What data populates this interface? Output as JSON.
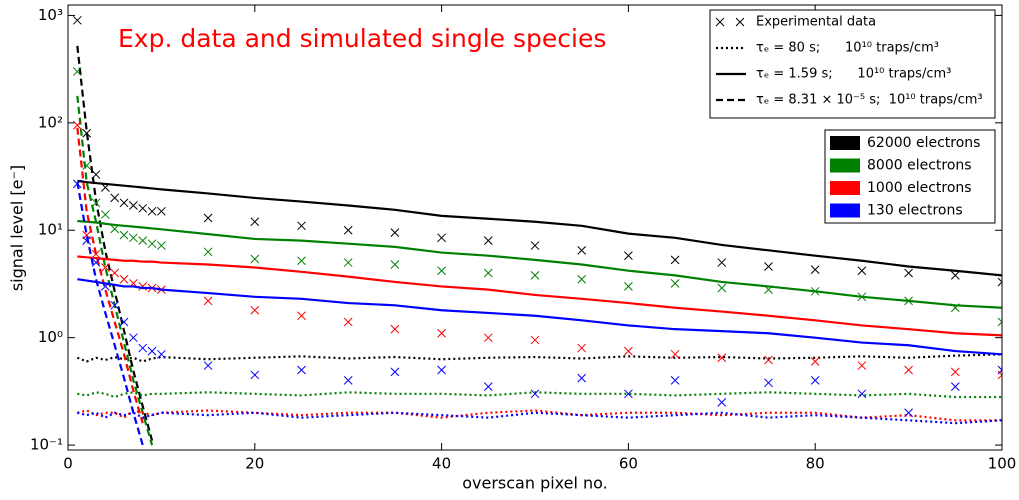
{
  "chart_data": {
    "type": "line",
    "title": "Exp. data and simulated single species",
    "xlabel": "overscan pixel no.",
    "ylabel": "signal level [e⁻]",
    "log_y": true,
    "xlim": [
      0,
      100
    ],
    "xticks": [
      0,
      20,
      40,
      60,
      80,
      100
    ],
    "ylim": [
      0.09,
      1250
    ],
    "yticks": [
      {
        "value": 0.1,
        "label": "10⁻¹"
      },
      {
        "value": 1,
        "label": "10⁰"
      },
      {
        "value": 10,
        "label": "10¹"
      },
      {
        "value": 100,
        "label": "10²"
      },
      {
        "value": 1000,
        "label": "10³"
      }
    ],
    "styles": [
      {
        "label": "Experimental data",
        "marker": "x"
      },
      {
        "label": "τₑ = 80 s;      10¹⁰ traps/cm³",
        "dash": "dotted"
      },
      {
        "label": "τₑ = 1.59 s;      10¹⁰ traps/cm³",
        "dash": "solid"
      },
      {
        "label": "τₑ = 8.31 × 10⁻⁵ s;  10¹⁰ traps/cm³",
        "dash": "dashed"
      }
    ],
    "x": [
      1,
      2,
      3,
      4,
      5,
      6,
      7,
      8,
      9,
      10,
      15,
      20,
      25,
      30,
      35,
      40,
      45,
      50,
      55,
      60,
      65,
      70,
      75,
      80,
      85,
      90,
      95,
      100
    ],
    "series": [
      {
        "name": "62000 electrons",
        "color": "#000000",
        "curves": [
          [
            900,
            80,
            33,
            25,
            20,
            18,
            17,
            16,
            15,
            15,
            13,
            12,
            11,
            10,
            9.5,
            8.5,
            8,
            7.2,
            6.5,
            5.8,
            5.3,
            5,
            4.6,
            4.3,
            4.2,
            4.0,
            3.8,
            3.3
          ],
          [
            0.65,
            0.6,
            0.65,
            0.62,
            0.66,
            0.63,
            0.65,
            0.6,
            0.64,
            0.66,
            0.63,
            0.65,
            0.67,
            0.64,
            0.66,
            0.63,
            0.65,
            0.66,
            0.64,
            0.67,
            0.65,
            0.66,
            0.64,
            0.65,
            0.67,
            0.65,
            0.68,
            0.7
          ],
          [
            28.8,
            28,
            27.5,
            27,
            26.5,
            26,
            25.5,
            25,
            24.5,
            24,
            22,
            20,
            18.5,
            17,
            15.5,
            13.6,
            12.8,
            12,
            11,
            9.3,
            8.5,
            7.3,
            6.5,
            5.8,
            5.2,
            4.6,
            4.2,
            3.8
          ],
          [
            520,
            84,
            18.8,
            6.4,
            2.7,
            1.16,
            0.49,
            0.23,
            0.11,
            null,
            null,
            null,
            null,
            null,
            null,
            null,
            null,
            null,
            null,
            null,
            null,
            null,
            null,
            null,
            null,
            null,
            null,
            null
          ]
        ]
      },
      {
        "name": "8000 electrons",
        "color": "#008000",
        "curves": [
          [
            300,
            40,
            18,
            14,
            10.3,
            9,
            8.5,
            8,
            7.5,
            7.2,
            6.3,
            5.4,
            5.2,
            5,
            4.8,
            4.2,
            4,
            3.8,
            3.5,
            3,
            3.2,
            2.9,
            2.8,
            2.7,
            2.4,
            2.2,
            1.9,
            1.4
          ],
          [
            0.3,
            0.29,
            0.31,
            0.3,
            0.28,
            0.3,
            0.31,
            0.29,
            0.3,
            0.3,
            0.31,
            0.3,
            0.29,
            0.31,
            0.3,
            0.3,
            0.29,
            0.31,
            0.3,
            0.3,
            0.29,
            0.3,
            0.31,
            0.3,
            0.29,
            0.3,
            0.28,
            0.28
          ],
          [
            12.2,
            12,
            11.8,
            11.5,
            11.2,
            11,
            10.8,
            10.6,
            10.4,
            10.2,
            9.2,
            8.3,
            8,
            7.5,
            7,
            6.2,
            5.8,
            5.3,
            4.8,
            4.2,
            3.8,
            3.3,
            3,
            2.7,
            2.4,
            2.2,
            2,
            1.9
          ],
          [
            178,
            28,
            12,
            4.5,
            2,
            0.9,
            0.4,
            0.2,
            0.1,
            null,
            null,
            null,
            null,
            null,
            null,
            null,
            null,
            null,
            null,
            null,
            null,
            null,
            null,
            null,
            null,
            null,
            null,
            null
          ]
        ]
      },
      {
        "name": "1000 electrons",
        "color": "#ff0000",
        "curves": [
          [
            95,
            9,
            6,
            4.5,
            4,
            3.5,
            3.2,
            3,
            2.9,
            2.8,
            2.2,
            1.8,
            1.6,
            1.4,
            1.2,
            1.1,
            1,
            0.95,
            0.8,
            0.75,
            0.7,
            0.65,
            0.62,
            0.6,
            0.55,
            0.5,
            0.48,
            0.45
          ],
          [
            0.2,
            0.21,
            0.19,
            0.2,
            0.2,
            0.18,
            0.21,
            0.2,
            0.19,
            0.2,
            0.21,
            0.2,
            0.19,
            0.2,
            0.2,
            0.18,
            0.2,
            0.21,
            0.19,
            0.2,
            0.2,
            0.19,
            0.2,
            0.2,
            0.18,
            0.19,
            0.17,
            0.17
          ],
          [
            5.7,
            5.6,
            5.5,
            5.4,
            5.3,
            5.2,
            5.2,
            5.1,
            5.1,
            5,
            4.8,
            4.5,
            4.1,
            3.7,
            3.3,
            3,
            2.8,
            2.5,
            2.3,
            2.1,
            1.9,
            1.75,
            1.6,
            1.45,
            1.3,
            1.2,
            1.1,
            1.05
          ],
          [
            90,
            15,
            6,
            2.8,
            1.4,
            0.7,
            0.32,
            0.16,
            null,
            null,
            null,
            null,
            null,
            null,
            null,
            null,
            null,
            null,
            null,
            null,
            null,
            null,
            null,
            null,
            null,
            null,
            null,
            null
          ]
        ]
      },
      {
        "name": "130 electrons",
        "color": "#0000ff",
        "curves": [
          [
            27,
            8,
            5,
            3,
            2,
            1.4,
            1,
            0.8,
            0.75,
            0.7,
            0.55,
            0.45,
            0.5,
            0.4,
            0.48,
            0.5,
            0.35,
            0.3,
            0.42,
            0.3,
            0.4,
            0.25,
            0.38,
            0.4,
            0.3,
            0.2,
            0.35,
            0.5
          ],
          [
            0.2,
            0.19,
            0.2,
            0.18,
            0.2,
            0.19,
            0.2,
            0.18,
            0.19,
            0.2,
            0.19,
            0.2,
            0.18,
            0.19,
            0.2,
            0.19,
            0.18,
            0.2,
            0.19,
            0.18,
            0.19,
            0.2,
            0.18,
            0.19,
            0.18,
            0.17,
            0.16,
            0.17
          ],
          [
            3.5,
            3.4,
            3.3,
            3.2,
            3.1,
            3,
            3,
            2.9,
            2.9,
            2.8,
            2.6,
            2.4,
            2.3,
            2.1,
            2,
            1.8,
            1.7,
            1.6,
            1.45,
            1.3,
            1.2,
            1.15,
            1.1,
            1,
            0.9,
            0.85,
            0.75,
            0.7
          ],
          [
            28,
            9,
            3.5,
            1.7,
            0.85,
            0.42,
            0.2,
            0.1,
            null,
            null,
            null,
            null,
            null,
            null,
            null,
            null,
            null,
            null,
            null,
            null,
            null,
            null,
            null,
            null,
            null,
            null,
            null,
            null
          ]
        ]
      }
    ]
  }
}
